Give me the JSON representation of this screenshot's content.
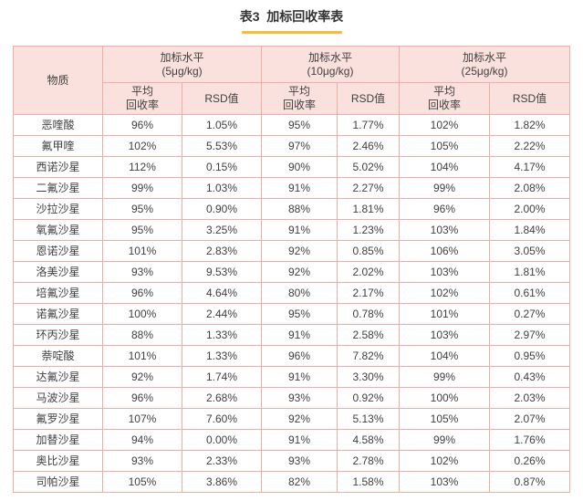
{
  "page": {
    "title": "表3  加标回收率表"
  },
  "table": {
    "substance_header": "物质",
    "groups": [
      {
        "title": "加标水平\n(5μg/kg)"
      },
      {
        "title": "加标水平\n(10μg/kg)"
      },
      {
        "title": "加标水平\n(25μg/kg)"
      }
    ],
    "sub_headers": {
      "recovery": "平均\n回收率",
      "rsd": "RSD值"
    },
    "rows": [
      {
        "substance": "恶喹酸",
        "values": [
          "96%",
          "1.05%",
          "95%",
          "1.77%",
          "102%",
          "1.82%"
        ]
      },
      {
        "substance": "氟甲喹",
        "values": [
          "102%",
          "5.53%",
          "97%",
          "2.46%",
          "105%",
          "2.22%"
        ]
      },
      {
        "substance": "西诺沙星",
        "values": [
          "112%",
          "0.15%",
          "90%",
          "5.02%",
          "104%",
          "4.17%"
        ]
      },
      {
        "substance": "二氟沙星",
        "values": [
          "99%",
          "1.03%",
          "91%",
          "2.27%",
          "99%",
          "2.08%"
        ]
      },
      {
        "substance": "沙拉沙星",
        "values": [
          "95%",
          "0.90%",
          "88%",
          "1.81%",
          "96%",
          "2.00%"
        ]
      },
      {
        "substance": "氧氟沙星",
        "values": [
          "95%",
          "3.25%",
          "91%",
          "1.23%",
          "103%",
          "1.84%"
        ]
      },
      {
        "substance": "恩诺沙星",
        "values": [
          "101%",
          "2.83%",
          "92%",
          "0.85%",
          "106%",
          "3.05%"
        ]
      },
      {
        "substance": "洛美沙星",
        "values": [
          "93%",
          "9.53%",
          "92%",
          "2.02%",
          "103%",
          "1.81%"
        ]
      },
      {
        "substance": "培氟沙星",
        "values": [
          "96%",
          "4.64%",
          "80%",
          "2.17%",
          "102%",
          "0.61%"
        ]
      },
      {
        "substance": "诺氟沙星",
        "values": [
          "100%",
          "2.44%",
          "95%",
          "0.78%",
          "101%",
          "0.27%"
        ]
      },
      {
        "substance": "环丙沙星",
        "values": [
          "88%",
          "1.33%",
          "91%",
          "2.58%",
          "103%",
          "2.97%"
        ]
      },
      {
        "substance": "萘啶酸",
        "values": [
          "101%",
          "1.33%",
          "96%",
          "7.82%",
          "104%",
          "0.95%"
        ]
      },
      {
        "substance": "达氟沙星",
        "values": [
          "92%",
          "1.74%",
          "91%",
          "3.30%",
          "99%",
          "0.43%"
        ]
      },
      {
        "substance": "马波沙星",
        "values": [
          "96%",
          "2.68%",
          "93%",
          "0.92%",
          "100%",
          "2.03%"
        ]
      },
      {
        "substance": "氟罗沙星",
        "values": [
          "107%",
          "7.60%",
          "92%",
          "5.13%",
          "105%",
          "2.07%"
        ]
      },
      {
        "substance": "加替沙星",
        "values": [
          "94%",
          "0.00%",
          "91%",
          "4.58%",
          "99%",
          "1.76%"
        ]
      },
      {
        "substance": "奥比沙星",
        "values": [
          "93%",
          "2.33%",
          "93%",
          "2.78%",
          "102%",
          "0.26%"
        ]
      },
      {
        "substance": "司帕沙星",
        "values": [
          "105%",
          "3.86%",
          "82%",
          "1.58%",
          "103%",
          "0.87%"
        ]
      }
    ]
  },
  "colors": {
    "header_bg": "#FBE1DE",
    "border": "#F2ACA6",
    "text": "#404040",
    "title_text": "#333333",
    "accent_underline": "#F6BE33"
  }
}
